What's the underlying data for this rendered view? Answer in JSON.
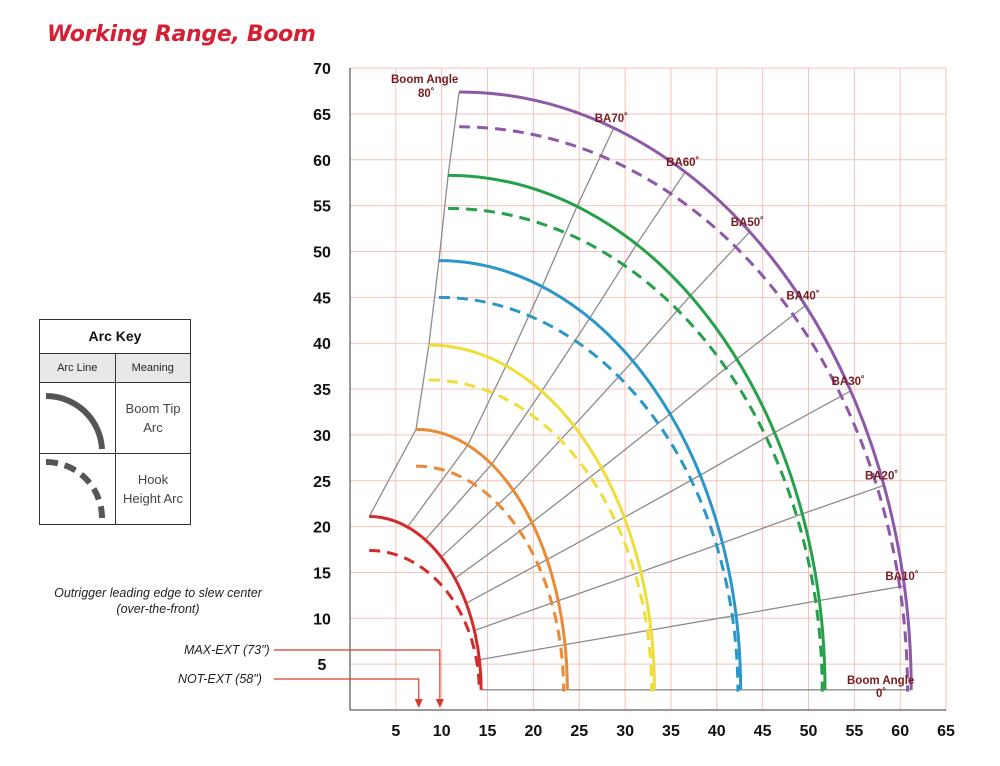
{
  "title": "Working Range, Boom",
  "arc_key": {
    "title": "Arc Key",
    "col_arc_line": "Arc Line",
    "col_meaning": "Meaning",
    "rows": [
      {
        "line_style": "solid",
        "meaning_line1": "Boom Tip",
        "meaning_line2": "Arc"
      },
      {
        "line_style": "dashed",
        "meaning_line1": "Hook",
        "meaning_line2": "Height Arc"
      }
    ]
  },
  "notes": {
    "outrigger_line1": "Outrigger leading edge to slew center",
    "outrigger_line2": "(over-the-front)",
    "max_ext": "MAX-EXT (73\")",
    "not_ext": "NOT-EXT (58\")"
  },
  "boom_angle_labels": {
    "top_line1": "Boom Angle",
    "top_line2": "80˚",
    "bottom_line1": "Boom Angle",
    "bottom_line2": "0˚"
  },
  "colors": {
    "title_red": "#d41f34",
    "grid": "#f3c2bd",
    "radial_lines": "#8c8c8c",
    "ba_label": "#7a1a1f",
    "pointer_red": "#d93a2b"
  },
  "chart_data": {
    "type": "working-range-diagram",
    "x_ticks": [
      5,
      10,
      15,
      20,
      25,
      30,
      35,
      40,
      45,
      50,
      55,
      60,
      65
    ],
    "y_ticks": [
      5,
      10,
      15,
      20,
      25,
      30,
      35,
      40,
      45,
      50,
      55,
      60,
      65,
      70
    ],
    "xlim": [
      0,
      65
    ],
    "ylim": [
      0,
      70
    ],
    "grid": true,
    "max_ext_x": 9.8,
    "not_ext_x": 7.5,
    "boom_angles": [
      {
        "label": "BA70˚",
        "angle": 70
      },
      {
        "label": "BA60˚",
        "angle": 60
      },
      {
        "label": "BA50˚",
        "angle": 50
      },
      {
        "label": "BA40˚",
        "angle": 40
      },
      {
        "label": "BA30˚",
        "angle": 30
      },
      {
        "label": "BA20˚",
        "angle": 20
      },
      {
        "label": "BA10˚",
        "angle": 10
      }
    ],
    "boom_sections": [
      {
        "color": "#d12b2b",
        "tip_top": [
          2.1,
          21.1
        ],
        "tip_end": [
          14.3,
          2.2
        ],
        "hook_top": [
          2.1,
          17.4
        ],
        "hook_end": [
          14.1,
          2.0
        ]
      },
      {
        "color": "#e98a37",
        "tip_top": [
          7.2,
          30.6
        ],
        "tip_end": [
          23.7,
          2.2
        ],
        "hook_top": [
          7.2,
          26.6
        ],
        "hook_end": [
          23.3,
          2.0
        ]
      },
      {
        "color": "#f0dd3a",
        "tip_top": [
          8.6,
          39.8
        ],
        "tip_end": [
          33.2,
          2.2
        ],
        "hook_top": [
          8.6,
          36.0
        ],
        "hook_end": [
          32.9,
          2.0
        ]
      },
      {
        "color": "#2b96c8",
        "tip_top": [
          9.7,
          49.0
        ],
        "tip_end": [
          42.6,
          2.2
        ],
        "hook_top": [
          9.7,
          45.0
        ],
        "hook_end": [
          42.3,
          2.0
        ]
      },
      {
        "color": "#26a04a",
        "tip_top": [
          10.7,
          58.3
        ],
        "tip_end": [
          51.8,
          2.2
        ],
        "hook_top": [
          10.7,
          54.7
        ],
        "hook_end": [
          51.5,
          2.0
        ]
      },
      {
        "color": "#8e58a8",
        "tip_top": [
          11.9,
          67.4
        ],
        "tip_end": [
          61.2,
          2.2
        ],
        "hook_top": [
          11.9,
          63.6
        ],
        "hook_end": [
          60.8,
          2.0
        ]
      }
    ]
  }
}
